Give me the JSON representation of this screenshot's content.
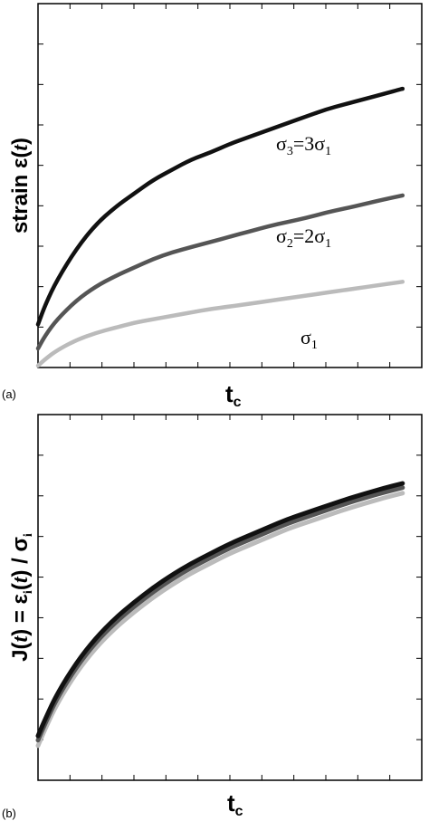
{
  "chart_data": [
    {
      "type": "line",
      "panel_label": "(a)",
      "xlabel": {
        "main": "t",
        "sub": "c"
      },
      "ylabel": {
        "prefix": "strain ",
        "greek": "ε(",
        "italic": "t",
        "suffix": ")"
      },
      "grid": false,
      "xlim": [
        0,
        1
      ],
      "ylim": [
        0,
        1
      ],
      "series": [
        {
          "color": "#111111",
          "label": {
            "sym": "σ",
            "sub": "3",
            "mid": "=3σ",
            "sub2": "1"
          },
          "x": [
            0.0,
            0.02,
            0.05,
            0.1,
            0.15,
            0.2,
            0.25,
            0.3,
            0.35,
            0.4,
            0.45,
            0.5,
            0.55,
            0.6,
            0.65,
            0.7,
            0.75,
            0.8,
            0.85,
            0.9,
            0.95
          ],
          "y": [
            0.12,
            0.18,
            0.25,
            0.34,
            0.41,
            0.46,
            0.5,
            0.54,
            0.57,
            0.6,
            0.62,
            0.645,
            0.665,
            0.685,
            0.705,
            0.725,
            0.745,
            0.76,
            0.775,
            0.79,
            0.805
          ]
        },
        {
          "color": "#555555",
          "label": {
            "sym": "σ",
            "sub": "2",
            "mid": "=2σ",
            "sub2": "1"
          },
          "x": [
            0.0,
            0.02,
            0.05,
            0.1,
            0.15,
            0.2,
            0.25,
            0.3,
            0.35,
            0.4,
            0.45,
            0.5,
            0.55,
            0.6,
            0.65,
            0.7,
            0.75,
            0.8,
            0.85,
            0.9,
            0.95
          ],
          "y": [
            0.05,
            0.09,
            0.135,
            0.19,
            0.23,
            0.26,
            0.285,
            0.31,
            0.33,
            0.345,
            0.36,
            0.375,
            0.39,
            0.405,
            0.418,
            0.43,
            0.445,
            0.457,
            0.47,
            0.483,
            0.495
          ]
        },
        {
          "color": "#bbbbbb",
          "label": {
            "sym": "σ",
            "sub": "1",
            "mid": "",
            "sub2": ""
          },
          "x": [
            0.0,
            0.02,
            0.05,
            0.1,
            0.15,
            0.2,
            0.25,
            0.3,
            0.35,
            0.4,
            0.45,
            0.5,
            0.55,
            0.6,
            0.65,
            0.7,
            0.75,
            0.8,
            0.85,
            0.9,
            0.95
          ],
          "y": [
            0.0,
            0.02,
            0.045,
            0.075,
            0.095,
            0.11,
            0.125,
            0.135,
            0.145,
            0.155,
            0.165,
            0.172,
            0.18,
            0.188,
            0.196,
            0.204,
            0.212,
            0.22,
            0.228,
            0.236,
            0.244
          ]
        }
      ]
    },
    {
      "type": "line",
      "panel_label": "(b)",
      "xlabel": {
        "main": "t",
        "sub": "c"
      },
      "ylabel": {
        "prefix": "J(",
        "italic": "t",
        "mid": ") = ε",
        "sub": "i",
        "mid2": "(",
        "italic2": "t",
        "mid3": ") / σ",
        "sub2": "i"
      },
      "grid": false,
      "xlim": [
        0,
        1
      ],
      "ylim": [
        0,
        1
      ],
      "series": [
        {
          "color": "#111111",
          "x": [
            0.0,
            0.02,
            0.05,
            0.1,
            0.15,
            0.2,
            0.25,
            0.3,
            0.35,
            0.4,
            0.45,
            0.5,
            0.55,
            0.6,
            0.65,
            0.7,
            0.75,
            0.8,
            0.85,
            0.9,
            0.95
          ],
          "y": [
            0.125,
            0.18,
            0.255,
            0.35,
            0.425,
            0.485,
            0.535,
            0.58,
            0.62,
            0.655,
            0.685,
            0.715,
            0.74,
            0.765,
            0.79,
            0.81,
            0.83,
            0.85,
            0.868,
            0.885,
            0.9
          ]
        },
        {
          "color": "#555555",
          "x": [
            0.0,
            0.02,
            0.05,
            0.1,
            0.15,
            0.2,
            0.25,
            0.3,
            0.35,
            0.4,
            0.45,
            0.5,
            0.55,
            0.6,
            0.65,
            0.7,
            0.75,
            0.8,
            0.85,
            0.9,
            0.95
          ],
          "y": [
            0.112,
            0.167,
            0.242,
            0.337,
            0.412,
            0.472,
            0.522,
            0.567,
            0.607,
            0.642,
            0.672,
            0.702,
            0.727,
            0.752,
            0.777,
            0.797,
            0.817,
            0.837,
            0.855,
            0.872,
            0.887
          ]
        },
        {
          "color": "#bbbbbb",
          "x": [
            0.0,
            0.02,
            0.05,
            0.1,
            0.15,
            0.2,
            0.25,
            0.3,
            0.35,
            0.4,
            0.45,
            0.5,
            0.55,
            0.6,
            0.65,
            0.7,
            0.75,
            0.8,
            0.85,
            0.9,
            0.95
          ],
          "y": [
            0.095,
            0.15,
            0.225,
            0.32,
            0.395,
            0.455,
            0.505,
            0.55,
            0.59,
            0.625,
            0.655,
            0.685,
            0.71,
            0.735,
            0.76,
            0.78,
            0.8,
            0.82,
            0.838,
            0.855,
            0.87
          ]
        }
      ]
    }
  ]
}
